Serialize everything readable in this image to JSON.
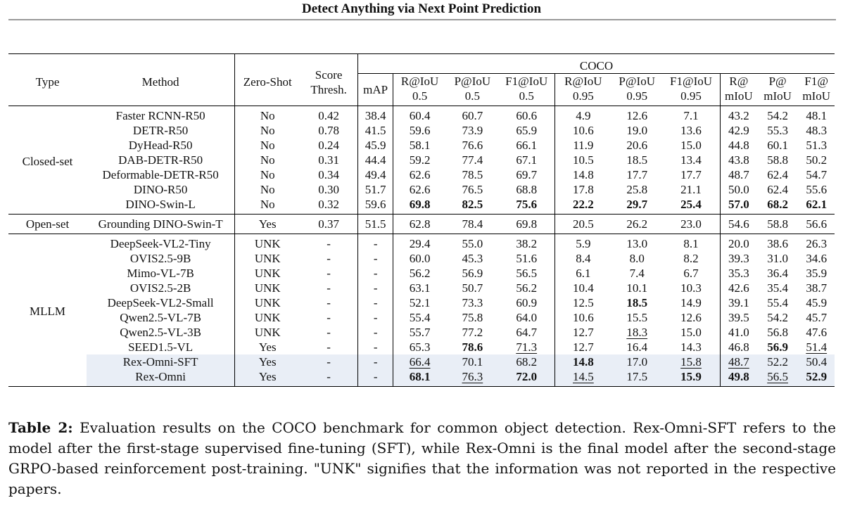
{
  "header": {
    "title": "Detect Anything via Next Point Prediction"
  },
  "table": {
    "headers": {
      "type": "Type",
      "method": "Method",
      "zeroshot": "Zero-Shot",
      "score_line1": "Score",
      "score_line2": "Thresh.",
      "coco": "COCO",
      "cols": [
        {
          "l1": "mAP",
          "l2": ""
        },
        {
          "l1": "R@IoU",
          "l2": "0.5"
        },
        {
          "l1": "P@IoU",
          "l2": "0.5"
        },
        {
          "l1": "F1@IoU",
          "l2": "0.5"
        },
        {
          "l1": "R@IoU",
          "l2": "0.95"
        },
        {
          "l1": "P@IoU",
          "l2": "0.95"
        },
        {
          "l1": "F1@IoU",
          "l2": "0.95"
        },
        {
          "l1": "R@",
          "l2": "mIoU"
        },
        {
          "l1": "P@",
          "l2": "mIoU"
        },
        {
          "l1": "F1@",
          "l2": "mIoU"
        }
      ]
    },
    "groups": [
      {
        "type": "Closed-set",
        "rows": [
          {
            "method": "Faster RCNN-R50",
            "zs": "No",
            "thr": "0.42",
            "vals": [
              "38.4",
              "60.4",
              "60.7",
              "60.6",
              "4.9",
              "12.6",
              "7.1",
              "43.2",
              "54.2",
              "48.1"
            ],
            "bold": [],
            "ul": []
          },
          {
            "method": "DETR-R50",
            "zs": "No",
            "thr": "0.78",
            "vals": [
              "41.5",
              "59.6",
              "73.9",
              "65.9",
              "10.6",
              "19.0",
              "13.6",
              "42.9",
              "55.3",
              "48.3"
            ],
            "bold": [],
            "ul": []
          },
          {
            "method": "DyHead-R50",
            "zs": "No",
            "thr": "0.24",
            "vals": [
              "45.9",
              "58.1",
              "76.6",
              "66.1",
              "11.9",
              "20.6",
              "15.0",
              "44.8",
              "60.1",
              "51.3"
            ],
            "bold": [],
            "ul": []
          },
          {
            "method": "DAB-DETR-R50",
            "zs": "No",
            "thr": "0.31",
            "vals": [
              "44.4",
              "59.2",
              "77.4",
              "67.1",
              "10.5",
              "18.5",
              "13.4",
              "43.8",
              "58.8",
              "50.2"
            ],
            "bold": [],
            "ul": []
          },
          {
            "method": "Deformable-DETR-R50",
            "zs": "No",
            "thr": "0.34",
            "vals": [
              "49.4",
              "62.6",
              "78.5",
              "69.7",
              "14.8",
              "17.7",
              "17.7",
              "48.7",
              "62.4",
              "54.7"
            ],
            "bold": [],
            "ul": []
          },
          {
            "method": "DINO-R50",
            "zs": "No",
            "thr": "0.30",
            "vals": [
              "51.7",
              "62.6",
              "76.5",
              "68.8",
              "17.8",
              "25.8",
              "21.1",
              "50.0",
              "62.4",
              "55.6"
            ],
            "bold": [],
            "ul": []
          },
          {
            "method": "DINO-Swin-L",
            "zs": "No",
            "thr": "0.32",
            "vals": [
              "59.6",
              "69.8",
              "82.5",
              "75.6",
              "22.2",
              "29.7",
              "25.4",
              "57.0",
              "68.2",
              "62.1"
            ],
            "bold": [
              1,
              2,
              3,
              4,
              5,
              6,
              7,
              8,
              9
            ],
            "ul": []
          }
        ]
      },
      {
        "type": "Open-set",
        "rows": [
          {
            "method": "Grounding DINO-Swin-T",
            "zs": "Yes",
            "thr": "0.37",
            "vals": [
              "51.5",
              "62.8",
              "78.4",
              "69.8",
              "20.5",
              "26.2",
              "23.0",
              "54.6",
              "58.8",
              "56.6"
            ],
            "bold": [],
            "ul": []
          }
        ]
      },
      {
        "type": "MLLM",
        "rows": [
          {
            "method": "DeepSeek-VL2-Tiny",
            "zs": "UNK",
            "thr": "-",
            "vals": [
              "-",
              "29.4",
              "55.0",
              "38.2",
              "5.9",
              "13.0",
              "8.1",
              "20.0",
              "38.6",
              "26.3"
            ],
            "bold": [],
            "ul": []
          },
          {
            "method": "OVIS2.5-9B",
            "zs": "UNK",
            "thr": "-",
            "vals": [
              "-",
              "60.0",
              "45.3",
              "51.6",
              "8.4",
              "8.0",
              "8.2",
              "39.3",
              "31.0",
              "34.6"
            ],
            "bold": [],
            "ul": []
          },
          {
            "method": "Mimo-VL-7B",
            "zs": "UNK",
            "thr": "-",
            "vals": [
              "-",
              "56.2",
              "56.9",
              "56.5",
              "6.1",
              "7.4",
              "6.7",
              "35.3",
              "36.4",
              "35.9"
            ],
            "bold": [],
            "ul": []
          },
          {
            "method": "OVIS2.5-2B",
            "zs": "UNK",
            "thr": "-",
            "vals": [
              "-",
              "63.1",
              "50.7",
              "56.2",
              "10.4",
              "10.1",
              "10.3",
              "42.6",
              "35.4",
              "38.7"
            ],
            "bold": [],
            "ul": []
          },
          {
            "method": "DeepSeek-VL2-Small",
            "zs": "UNK",
            "thr": "-",
            "vals": [
              "-",
              "52.1",
              "73.3",
              "60.9",
              "12.5",
              "18.5",
              "14.9",
              "39.1",
              "55.4",
              "45.9"
            ],
            "bold": [
              5
            ],
            "ul": []
          },
          {
            "method": "Qwen2.5-VL-7B",
            "zs": "UNK",
            "thr": "-",
            "vals": [
              "-",
              "55.4",
              "75.8",
              "64.0",
              "10.6",
              "15.5",
              "12.6",
              "39.5",
              "54.2",
              "45.7"
            ],
            "bold": [],
            "ul": []
          },
          {
            "method": "Qwen2.5-VL-3B",
            "zs": "UNK",
            "thr": "-",
            "vals": [
              "-",
              "55.7",
              "77.2",
              "64.7",
              "12.7",
              "18.3",
              "15.0",
              "41.0",
              "56.8",
              "47.6"
            ],
            "bold": [],
            "ul": [
              5
            ]
          },
          {
            "method": "SEED1.5-VL",
            "zs": "Yes",
            "thr": "-",
            "vals": [
              "-",
              "65.3",
              "78.6",
              "71.3",
              "12.7",
              "16.4",
              "14.3",
              "46.8",
              "56.9",
              "51.4"
            ],
            "bold": [
              2,
              8
            ],
            "ul": [
              3,
              9
            ]
          },
          {
            "method": "Rex-Omni-SFT",
            "zs": "Yes",
            "thr": "-",
            "vals": [
              "-",
              "66.4",
              "70.1",
              "68.2",
              "14.8",
              "17.0",
              "15.8",
              "48.7",
              "52.2",
              "50.4"
            ],
            "bold": [
              4
            ],
            "ul": [
              1,
              6,
              7
            ],
            "hl": true
          },
          {
            "method": "Rex-Omni",
            "zs": "Yes",
            "thr": "-",
            "vals": [
              "-",
              "68.1",
              "76.3",
              "72.0",
              "14.5",
              "17.5",
              "15.9",
              "49.8",
              "56.5",
              "52.9"
            ],
            "bold": [
              1,
              3,
              6,
              7,
              9
            ],
            "ul": [
              2,
              4,
              8
            ],
            "hl": true
          }
        ]
      }
    ]
  },
  "caption": {
    "label": "Table 2:",
    "text": " Evaluation results on the COCO benchmark for common object detection. Rex-Omni-SFT refers to the model after the first-stage supervised fine-tuning (SFT), while Rex-Omni is the final model after the second-stage GRPO-based reinforcement post-training. \"UNK\" signifies that the information was not reported in the respective papers."
  }
}
